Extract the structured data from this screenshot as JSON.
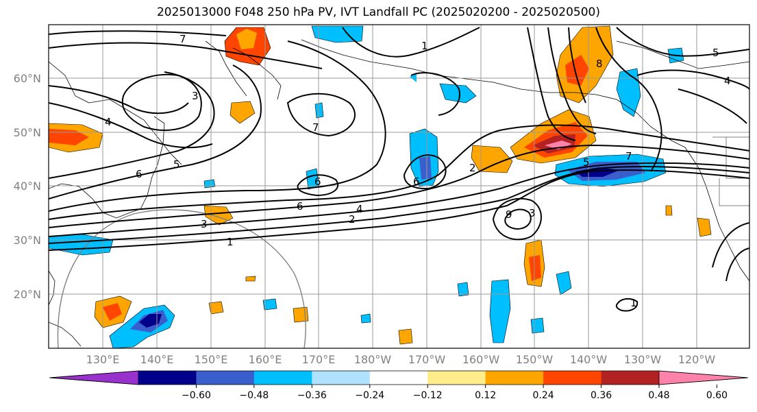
{
  "title": "2025013000 F048 250 hPa PV, IVT Landfall PC (2025020200 - 2025020500)",
  "lat_labels": [
    "60°N",
    "50°N",
    "40°N",
    "30°N",
    "20°N"
  ],
  "lon_labels": [
    "130°E",
    "140°E",
    "150°E",
    "160°E",
    "170°E",
    "180°W",
    "170°W",
    "160°W",
    "150°W",
    "140°W",
    "130°W",
    "120°W"
  ],
  "colorbar": {
    "ticks": [
      "−0.60",
      "−0.48",
      "−0.36",
      "−0.24",
      "−0.12",
      "0.12",
      "0.24",
      "0.36",
      "0.48",
      "0.60"
    ],
    "colors": [
      "#9932cc",
      "#00008b",
      "#3a5fcd",
      "#00bfff",
      "#b0e2ff",
      "#ffffff",
      "#ffec8b",
      "#ffa500",
      "#ff4500",
      "#b22222",
      "#ff82ab"
    ]
  },
  "pv_contour_labels": [
    "7",
    "3",
    "4",
    "6",
    "5",
    "6",
    "3",
    "1",
    "2",
    "4",
    "6",
    "1",
    "6",
    "7",
    "2",
    "3",
    "9",
    "5",
    "8",
    "7",
    "5",
    "4",
    "1"
  ]
}
